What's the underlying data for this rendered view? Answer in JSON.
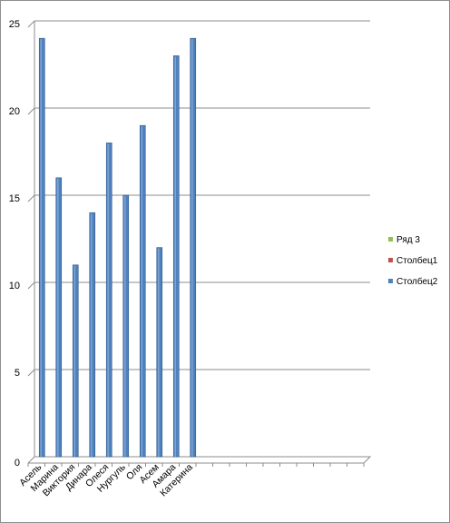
{
  "chart_data": {
    "type": "bar",
    "categories": [
      "Асель",
      "Марина",
      "Виктория",
      "Динара",
      "Олеся",
      "Нургуль",
      "Оля",
      "Асем",
      "Амара",
      "Катерина",
      "",
      "",
      "",
      "",
      "",
      "",
      "",
      "",
      "",
      ""
    ],
    "series": [
      {
        "name": "Ряд 3",
        "color": "#92c04f",
        "values": [
          0,
          0,
          0,
          0,
          0,
          0,
          0,
          0,
          0,
          0,
          0,
          0,
          0,
          0,
          0,
          0,
          0,
          0,
          0,
          0
        ]
      },
      {
        "name": "Столбец1",
        "color": "#c0504d",
        "values": [
          0,
          0,
          0,
          0,
          0,
          0,
          0,
          0,
          0,
          0,
          0,
          0,
          0,
          0,
          0,
          0,
          0,
          0,
          0,
          0
        ]
      },
      {
        "name": "Столбец2",
        "color": "#4f81bd",
        "values": [
          24,
          16,
          11,
          14,
          18,
          15,
          19,
          12,
          23,
          24,
          0,
          0,
          0,
          0,
          0,
          0,
          0,
          0,
          0,
          0
        ]
      }
    ],
    "ylim": [
      0,
      25
    ],
    "yticks": [
      0,
      5,
      10,
      15,
      20,
      25
    ],
    "grid": true,
    "legend": "right",
    "title": "",
    "xlabel": "",
    "ylabel": ""
  }
}
